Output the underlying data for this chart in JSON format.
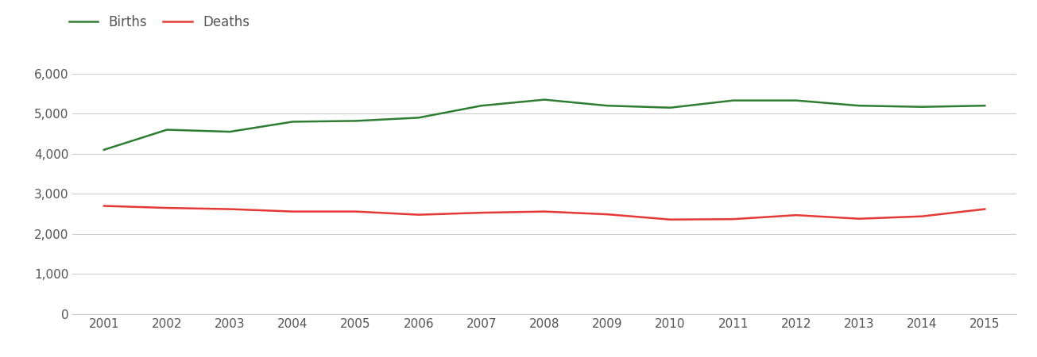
{
  "years": [
    2001,
    2002,
    2003,
    2004,
    2005,
    2006,
    2007,
    2008,
    2009,
    2010,
    2011,
    2012,
    2013,
    2014,
    2015
  ],
  "births": [
    4100,
    4600,
    4550,
    4800,
    4820,
    4900,
    5200,
    5350,
    5200,
    5150,
    5330,
    5330,
    5200,
    5170,
    5200
  ],
  "deaths": [
    2700,
    2650,
    2620,
    2560,
    2560,
    2480,
    2530,
    2560,
    2490,
    2360,
    2370,
    2470,
    2380,
    2440,
    2620
  ],
  "births_color": "#2e7d32",
  "deaths_color": "#e53935",
  "grid_color": "#cccccc",
  "background_color": "#ffffff",
  "legend_births": "Births",
  "legend_deaths": "Deaths",
  "ylim": [
    0,
    6500
  ],
  "yticks": [
    0,
    1000,
    2000,
    3000,
    4000,
    5000,
    6000
  ],
  "line_width": 1.8,
  "tick_fontsize": 11,
  "tick_color": "#555555",
  "legend_fontsize": 12
}
